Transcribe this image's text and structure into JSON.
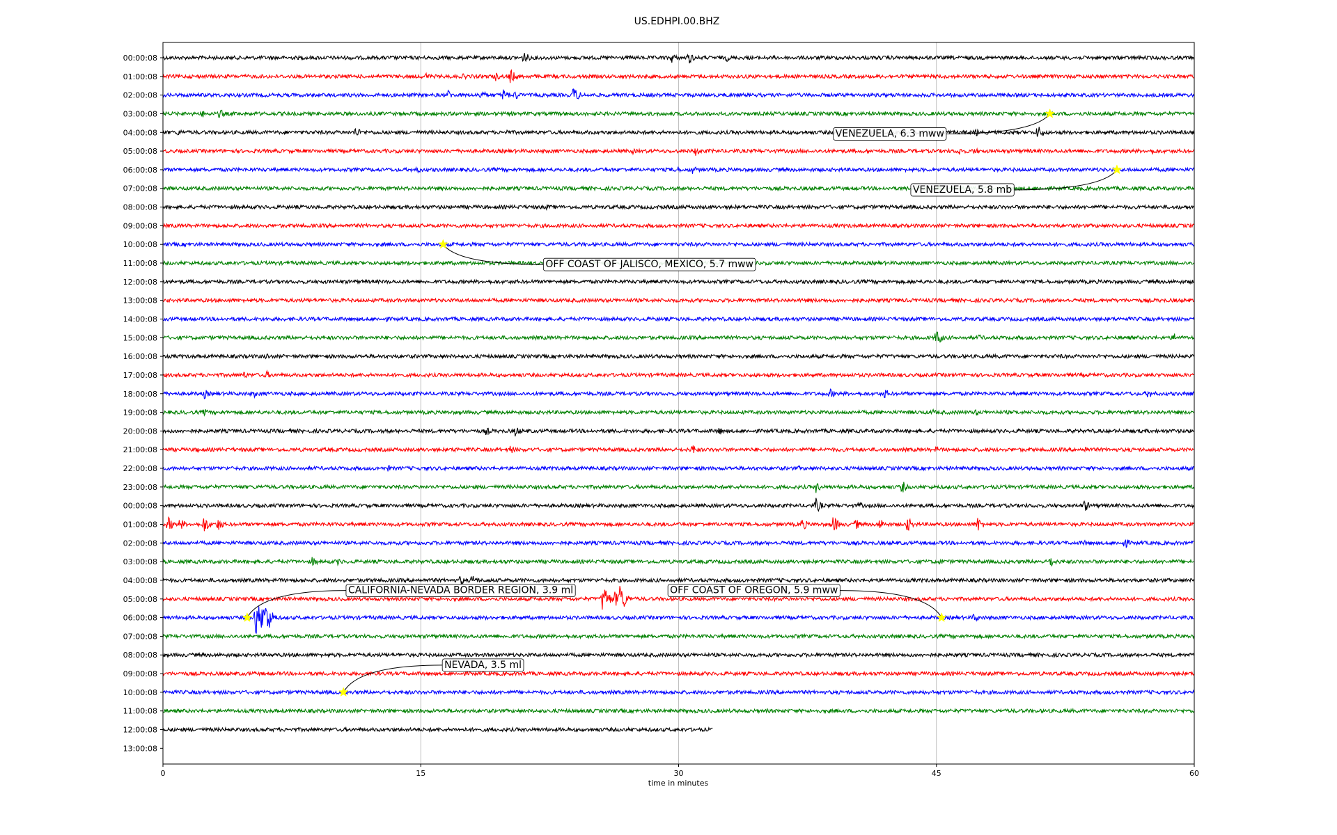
{
  "chart_data": {
    "type": "line",
    "title": "US.EDHPI.00.BHZ",
    "xlabel": "time in minutes",
    "ylabel": "",
    "xlim": [
      0,
      60
    ],
    "x_ticks": [
      "0",
      "15",
      "30",
      "45",
      "60"
    ],
    "x_tick_values": [
      0,
      15,
      30,
      45,
      60
    ],
    "grid": "vertical",
    "row_colors": [
      "#000000",
      "#ff0000",
      "#0000ff",
      "#008000"
    ],
    "rows": [
      {
        "label": "00:00:08",
        "end": 60
      },
      {
        "label": "01:00:08",
        "end": 60
      },
      {
        "label": "02:00:08",
        "end": 60
      },
      {
        "label": "03:00:08",
        "end": 60
      },
      {
        "label": "04:00:08",
        "end": 60
      },
      {
        "label": "05:00:08",
        "end": 60
      },
      {
        "label": "06:00:08",
        "end": 60
      },
      {
        "label": "07:00:08",
        "end": 60
      },
      {
        "label": "08:00:08",
        "end": 60
      },
      {
        "label": "09:00:08",
        "end": 60
      },
      {
        "label": "10:00:08",
        "end": 60
      },
      {
        "label": "11:00:08",
        "end": 60
      },
      {
        "label": "12:00:08",
        "end": 60
      },
      {
        "label": "13:00:08",
        "end": 60
      },
      {
        "label": "14:00:08",
        "end": 60
      },
      {
        "label": "15:00:08",
        "end": 60
      },
      {
        "label": "16:00:08",
        "end": 60
      },
      {
        "label": "17:00:08",
        "end": 60
      },
      {
        "label": "18:00:08",
        "end": 60
      },
      {
        "label": "19:00:08",
        "end": 60
      },
      {
        "label": "20:00:08",
        "end": 60
      },
      {
        "label": "21:00:08",
        "end": 60
      },
      {
        "label": "22:00:08",
        "end": 60
      },
      {
        "label": "23:00:08",
        "end": 60
      },
      {
        "label": "00:00:08",
        "end": 60
      },
      {
        "label": "01:00:08",
        "end": 60
      },
      {
        "label": "02:00:08",
        "end": 60
      },
      {
        "label": "03:00:08",
        "end": 60
      },
      {
        "label": "04:00:08",
        "end": 60
      },
      {
        "label": "05:00:08",
        "end": 60
      },
      {
        "label": "06:00:08",
        "end": 60
      },
      {
        "label": "07:00:08",
        "end": 60
      },
      {
        "label": "08:00:08",
        "end": 60
      },
      {
        "label": "09:00:08",
        "end": 60
      },
      {
        "label": "10:00:08",
        "end": 60
      },
      {
        "label": "11:00:08",
        "end": 60
      },
      {
        "label": "12:00:08",
        "end": 32
      },
      {
        "label": "13:00:08",
        "end": 0
      }
    ],
    "spikes": [
      [
        0,
        21,
        10
      ],
      [
        0,
        29.6,
        8
      ],
      [
        0,
        30.6,
        10
      ],
      [
        0,
        32.8,
        6
      ],
      [
        0,
        11,
        5
      ],
      [
        1,
        15.3,
        6
      ],
      [
        1,
        19.3,
        8
      ],
      [
        1,
        20.2,
        12
      ],
      [
        1,
        17.5,
        5
      ],
      [
        2,
        16.6,
        8
      ],
      [
        2,
        18.5,
        9
      ],
      [
        2,
        19.8,
        10
      ],
      [
        2,
        20.5,
        8
      ],
      [
        2,
        23.9,
        14
      ],
      [
        3,
        2.3,
        6
      ],
      [
        3,
        3.3,
        8
      ],
      [
        4,
        0.9,
        6
      ],
      [
        4,
        11.2,
        9
      ],
      [
        4,
        20.0,
        5
      ],
      [
        4,
        47.3,
        6
      ],
      [
        4,
        50.9,
        12
      ],
      [
        5,
        31.0,
        8
      ],
      [
        5,
        46.3,
        7
      ],
      [
        5,
        47.2,
        6
      ],
      [
        5,
        57.6,
        6
      ],
      [
        5,
        27.3,
        5
      ],
      [
        6,
        14.8,
        6
      ],
      [
        6,
        29.8,
        8
      ],
      [
        6,
        30.8,
        7
      ],
      [
        8,
        22.3,
        5
      ],
      [
        14,
        13.0,
        4
      ],
      [
        15,
        45.0,
        14
      ],
      [
        15,
        47.5,
        6
      ],
      [
        15,
        58.8,
        8
      ],
      [
        16,
        6.0,
        6
      ],
      [
        17,
        4.7,
        6
      ],
      [
        17,
        6.0,
        7
      ],
      [
        18,
        2.4,
        8
      ],
      [
        18,
        5.3,
        6
      ],
      [
        18,
        38.8,
        8
      ],
      [
        18,
        42.0,
        8
      ],
      [
        18,
        57.3,
        8
      ],
      [
        19,
        2.4,
        6
      ],
      [
        19,
        44.8,
        5
      ],
      [
        19,
        47.3,
        6
      ],
      [
        20,
        18.8,
        7
      ],
      [
        20,
        20.5,
        9
      ],
      [
        20,
        32.3,
        8
      ],
      [
        20,
        26.0,
        4
      ],
      [
        21,
        2.0,
        6
      ],
      [
        21,
        17.0,
        5
      ],
      [
        21,
        20.2,
        7
      ],
      [
        21,
        30.8,
        9
      ],
      [
        21,
        45.0,
        6
      ],
      [
        21,
        53.6,
        6
      ],
      [
        22,
        13.1,
        5
      ],
      [
        22,
        37.0,
        4
      ],
      [
        23,
        38.0,
        9
      ],
      [
        23,
        43.0,
        10
      ],
      [
        24,
        38.0,
        12
      ],
      [
        24,
        40.5,
        6
      ],
      [
        24,
        53.6,
        10
      ],
      [
        25,
        0.3,
        12
      ],
      [
        25,
        1.0,
        10
      ],
      [
        25,
        2.4,
        14
      ],
      [
        25,
        3.2,
        10
      ],
      [
        25,
        37.2,
        10
      ],
      [
        25,
        39.0,
        14
      ],
      [
        25,
        40.3,
        9
      ],
      [
        25,
        41.7,
        10
      ],
      [
        25,
        43.3,
        12
      ],
      [
        25,
        47.4,
        12
      ],
      [
        26,
        55.9,
        10
      ],
      [
        26,
        53.6,
        5
      ],
      [
        27,
        8.7,
        8
      ],
      [
        27,
        10.2,
        6
      ],
      [
        27,
        51.6,
        10
      ],
      [
        27,
        45.2,
        5
      ],
      [
        28,
        17.3,
        8
      ],
      [
        28,
        18.0,
        10
      ],
      [
        29,
        25.6,
        26
      ],
      [
        29,
        26.3,
        12
      ],
      [
        29,
        26.6,
        26
      ],
      [
        30,
        5.4,
        30
      ],
      [
        30,
        6.0,
        28
      ],
      [
        30,
        5.7,
        24
      ],
      [
        30,
        47.2,
        8
      ]
    ],
    "events": [
      {
        "label": "VENEZUELA, 6.3 mww",
        "row": 3,
        "t": 51.6
      },
      {
        "label": "VENEZUELA, 5.8 mb",
        "row": 6,
        "t": 55.5
      },
      {
        "label": "OFF COAST OF JALISCO, MEXICO, 5.7 mww",
        "row": 10,
        "t": 16.3
      },
      {
        "label": "CALIFORNIA-NEVADA BORDER REGION, 3.9 ml",
        "row": 30,
        "t": 4.9
      },
      {
        "label": "OFF COAST OF OREGON, 5.9 mww",
        "row": 30,
        "t": 45.3
      },
      {
        "label": "NEVADA, 3.5 ml",
        "row": 34,
        "t": 10.5
      }
    ]
  }
}
